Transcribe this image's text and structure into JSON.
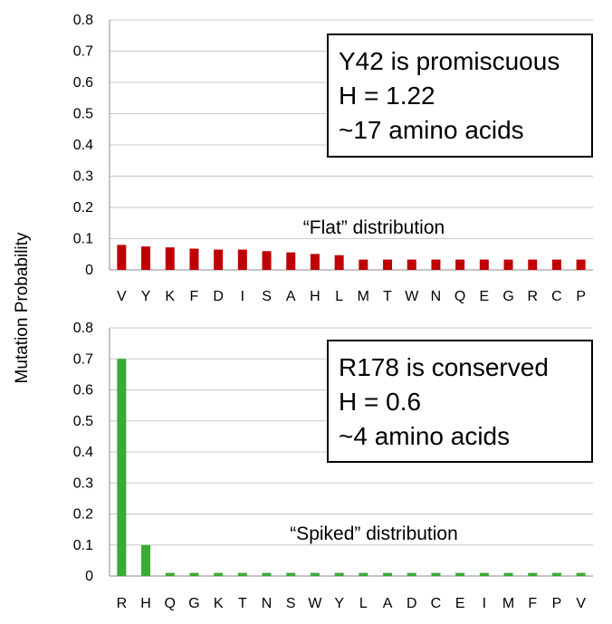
{
  "ylabel": "Mutation Probability",
  "chart_data": [
    {
      "type": "bar",
      "categories": [
        "V",
        "Y",
        "K",
        "F",
        "D",
        "I",
        "S",
        "A",
        "H",
        "L",
        "M",
        "T",
        "W",
        "N",
        "Q",
        "E",
        "G",
        "R",
        "C",
        "P"
      ],
      "values": [
        0.08,
        0.075,
        0.072,
        0.068,
        0.065,
        0.065,
        0.06,
        0.056,
        0.051,
        0.047,
        0.033,
        0.033,
        0.033,
        0.033,
        0.033,
        0.033,
        0.033,
        0.033,
        0.033,
        0.033
      ],
      "ylim": [
        0,
        0.8
      ],
      "yticks": [
        "0",
        "0.1",
        "0.2",
        "0.3",
        "0.4",
        "0.5",
        "0.6",
        "0.7",
        "0.8"
      ],
      "grid": true,
      "color": "#C00000",
      "annotation": "“Flat” distribution",
      "infobox": [
        "Y42 is promiscuous",
        "H = 1.22",
        "~17 amino acids"
      ]
    },
    {
      "type": "bar",
      "categories": [
        "R",
        "H",
        "Q",
        "G",
        "K",
        "T",
        "N",
        "S",
        "W",
        "Y",
        "L",
        "A",
        "D",
        "C",
        "E",
        "I",
        "M",
        "F",
        "P",
        "V"
      ],
      "values": [
        0.7,
        0.1,
        0.01,
        0.01,
        0.01,
        0.01,
        0.01,
        0.01,
        0.01,
        0.01,
        0.01,
        0.01,
        0.01,
        0.01,
        0.01,
        0.01,
        0.01,
        0.01,
        0.01,
        0.01
      ],
      "ylim": [
        0,
        0.8
      ],
      "yticks": [
        "0",
        "0.1",
        "0.2",
        "0.3",
        "0.4",
        "0.5",
        "0.6",
        "0.7",
        "0.8"
      ],
      "grid": true,
      "color": "#3AAA35",
      "annotation": "“Spiked” distribution",
      "infobox": [
        "R178 is conserved",
        "H = 0.6",
        "~4 amino acids"
      ]
    }
  ]
}
